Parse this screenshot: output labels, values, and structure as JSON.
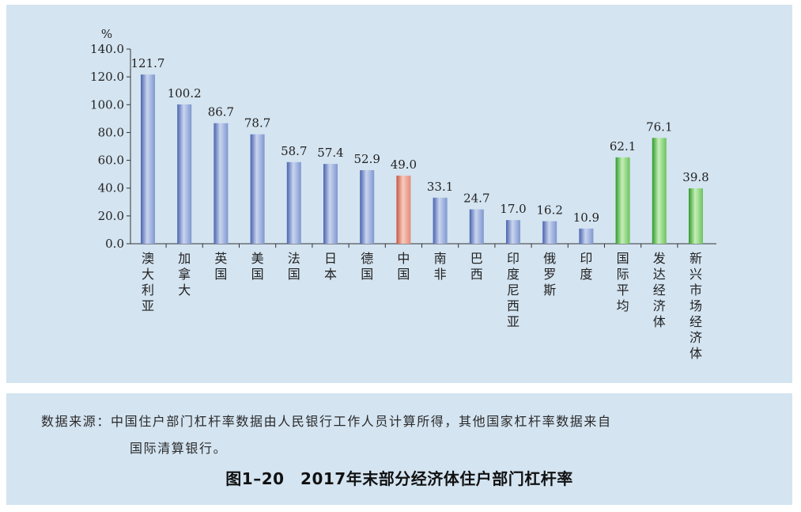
{
  "chart_data": {
    "type": "bar",
    "unit_label": "%",
    "ylim": [
      0,
      140
    ],
    "yticks": [
      "0.0",
      "20.0",
      "40.0",
      "60.0",
      "80.0",
      "100.0",
      "120.0",
      "140.0"
    ],
    "categories": [
      "澳大利亚",
      "加拿大",
      "英国",
      "美国",
      "法国",
      "日本",
      "德国",
      "中国",
      "南非",
      "巴西",
      "印度尼西亚",
      "俄罗斯",
      "印度",
      "国际平均",
      "发达经济体",
      "新兴市场经济体"
    ],
    "values": [
      121.7,
      100.2,
      86.7,
      78.7,
      58.7,
      57.4,
      52.9,
      49.0,
      33.1,
      24.7,
      17.0,
      16.2,
      10.9,
      62.1,
      76.1,
      39.8
    ],
    "value_labels": [
      "121.7",
      "100.2",
      "86.7",
      "78.7",
      "58.7",
      "57.4",
      "52.9",
      "49.0",
      "33.1",
      "24.7",
      "17.0",
      "16.2",
      "10.9",
      "62.1",
      "76.1",
      "39.8"
    ],
    "bar_groups": [
      "country",
      "country",
      "country",
      "country",
      "country",
      "country",
      "country",
      "china",
      "country",
      "country",
      "country",
      "country",
      "country",
      "aggregate",
      "aggregate",
      "aggregate"
    ],
    "colors": {
      "country": "#7f97cf",
      "china": "#e58a78",
      "aggregate": "#6cc35e"
    },
    "grid": false,
    "legend": "none"
  },
  "source_note": {
    "line1": "数据来源：中国住户部门杠杆率数据由人民银行工作人员计算所得，其他国家杠杆率数据来自",
    "line2": "国际清算银行。"
  },
  "figure_caption": "图1–20　2017年末部分经济体住户部门杠杆率"
}
